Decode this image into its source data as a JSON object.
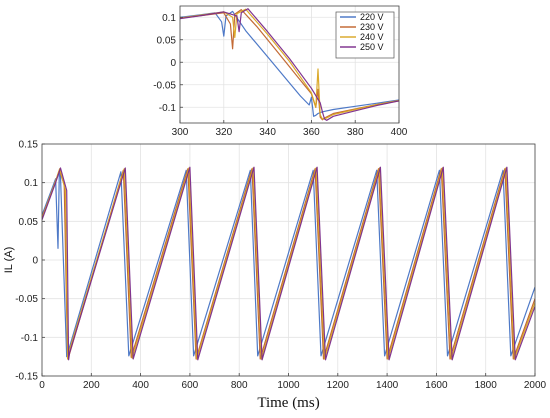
{
  "figure": {
    "panels": [
      "inset-panel",
      "main-panel"
    ]
  },
  "chart_data": [
    {
      "type": "line",
      "id": "inset",
      "xlabel": "",
      "ylabel": "",
      "xlim": [
        300,
        400
      ],
      "ylim": [
        -0.135,
        0.125
      ],
      "xticks": [
        300,
        320,
        340,
        360,
        380,
        400
      ],
      "yticks": [
        0.1,
        0.05,
        0,
        -0.05,
        -0.1
      ],
      "grid": true,
      "legend": {
        "placement": "top-right"
      },
      "series": [
        {
          "name": "220 V",
          "color": "#4472c4",
          "x": [
            300,
            310,
            316,
            319,
            320,
            321,
            324,
            330,
            340,
            350,
            355,
            359,
            360,
            361,
            362,
            363,
            365,
            370,
            380,
            390,
            400
          ],
          "y": [
            0.1,
            0.106,
            0.11,
            0.09,
            0.058,
            0.103,
            0.113,
            0.07,
            0.012,
            -0.046,
            -0.075,
            -0.095,
            -0.078,
            -0.12,
            -0.118,
            -0.114,
            -0.11,
            -0.105,
            -0.098,
            -0.091,
            -0.084
          ]
        },
        {
          "name": "230 V",
          "color": "#c0622a",
          "x": [
            300,
            310,
            320,
            323,
            324,
            325,
            328,
            335,
            345,
            355,
            360,
            362,
            363,
            364,
            365,
            366,
            370,
            380,
            390,
            400
          ],
          "y": [
            0.098,
            0.104,
            0.11,
            0.085,
            0.03,
            0.107,
            0.117,
            0.08,
            0.02,
            -0.04,
            -0.07,
            -0.1,
            -0.06,
            -0.122,
            -0.128,
            -0.124,
            -0.114,
            -0.104,
            -0.094,
            -0.086
          ]
        },
        {
          "name": "240 V",
          "color": "#d9a521",
          "x": [
            300,
            310,
            320,
            324,
            325,
            326,
            330,
            340,
            350,
            360,
            362,
            363,
            364,
            365,
            367,
            370,
            380,
            390,
            400
          ],
          "y": [
            0.098,
            0.105,
            0.112,
            0.1,
            0.055,
            0.108,
            0.118,
            0.062,
            0.002,
            -0.068,
            -0.1,
            -0.015,
            -0.117,
            -0.126,
            -0.124,
            -0.116,
            -0.105,
            -0.094,
            -0.085
          ]
        },
        {
          "name": "250 V",
          "color": "#7a2a8a",
          "x": [
            300,
            310,
            320,
            326,
            327,
            328,
            331,
            340,
            350,
            360,
            364,
            365,
            366,
            367,
            370,
            380,
            390,
            400
          ],
          "y": [
            0.097,
            0.104,
            0.112,
            0.103,
            0.068,
            0.11,
            0.119,
            0.068,
            0.008,
            -0.058,
            -0.09,
            -0.11,
            -0.126,
            -0.129,
            -0.12,
            -0.108,
            -0.096,
            -0.086
          ]
        }
      ]
    },
    {
      "type": "line",
      "id": "main",
      "xlabel": "Time (ms)",
      "ylabel": "IL (A)",
      "xlim": [
        0,
        2000
      ],
      "ylim": [
        -0.15,
        0.15
      ],
      "xticks": [
        0,
        200,
        400,
        600,
        800,
        1000,
        1200,
        1400,
        1600,
        1800,
        2000
      ],
      "yticks": [
        0.15,
        0.1,
        0.05,
        0,
        -0.05,
        -0.1,
        -0.15
      ],
      "grid": true,
      "series": [
        {
          "name": "220 V",
          "color": "#4472c4",
          "x": [
            0,
            40,
            55,
            60,
            65,
            70,
            75,
            100,
            320,
            352,
            585,
            615,
            845,
            875,
            1100,
            1132,
            1358,
            1390,
            1612,
            1645,
            1870,
            1902,
            2000
          ],
          "y": [
            0.058,
            0.092,
            0.105,
            0.06,
            0.015,
            0.112,
            0.108,
            -0.125,
            0.114,
            -0.124,
            0.116,
            -0.124,
            0.116,
            -0.124,
            0.116,
            -0.124,
            0.116,
            -0.124,
            0.116,
            -0.124,
            0.116,
            -0.124,
            -0.035
          ]
        },
        {
          "name": "230 V",
          "color": "#c0622a",
          "x": [
            0,
            50,
            70,
            90,
            100,
            105,
            115,
            330,
            362,
            592,
            625,
            852,
            885,
            1108,
            1142,
            1365,
            1400,
            1620,
            1655,
            1878,
            1912,
            2000
          ],
          "y": [
            0.055,
            0.097,
            0.116,
            0.098,
            -0.07,
            -0.128,
            -0.118,
            0.116,
            -0.126,
            0.118,
            -0.128,
            0.118,
            -0.128,
            0.118,
            -0.128,
            0.118,
            -0.128,
            0.118,
            -0.128,
            0.118,
            -0.128,
            -0.05
          ]
        },
        {
          "name": "240 V",
          "color": "#d9a521",
          "x": [
            0,
            52,
            72,
            95,
            104,
            110,
            334,
            366,
            596,
            628,
            856,
            890,
            1112,
            1146,
            1369,
            1404,
            1624,
            1660,
            1882,
            1916,
            2000
          ],
          "y": [
            0.054,
            0.099,
            0.118,
            0.09,
            -0.128,
            -0.118,
            0.118,
            -0.127,
            0.119,
            -0.128,
            0.119,
            -0.128,
            0.119,
            -0.128,
            0.119,
            -0.128,
            0.119,
            -0.128,
            0.119,
            -0.128,
            -0.055
          ]
        },
        {
          "name": "250 V",
          "color": "#7a2a8a",
          "x": [
            0,
            55,
            75,
            100,
            108,
            112,
            338,
            370,
            600,
            632,
            860,
            893,
            1116,
            1150,
            1373,
            1408,
            1628,
            1664,
            1886,
            1920,
            2000
          ],
          "y": [
            0.052,
            0.1,
            0.119,
            0.09,
            -0.129,
            -0.12,
            0.119,
            -0.128,
            0.12,
            -0.129,
            0.12,
            -0.129,
            0.12,
            -0.129,
            0.12,
            -0.129,
            0.12,
            -0.129,
            0.12,
            -0.129,
            -0.06
          ]
        }
      ]
    }
  ]
}
